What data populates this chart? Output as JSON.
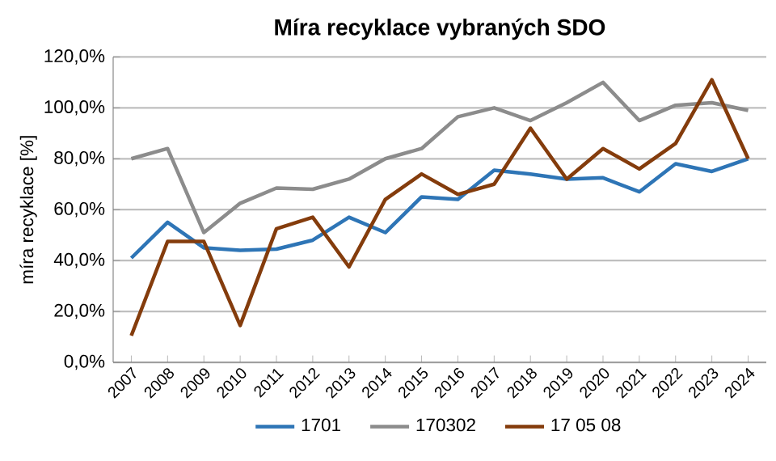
{
  "chart_data": {
    "type": "line",
    "title": "Míra recyklace vybraných SDO",
    "ylabel": "míra recyklace [%]",
    "categories": [
      "2007",
      "2008",
      "2009",
      "2010",
      "2011",
      "2012",
      "2013",
      "2014",
      "2015",
      "2016",
      "2017",
      "2018",
      "2019",
      "2020",
      "2021",
      "2022",
      "2023",
      "2024"
    ],
    "series": [
      {
        "name": "1701",
        "color": "#2e75b6",
        "values": [
          41,
          55,
          45,
          44,
          44.5,
          48,
          57,
          51,
          65,
          64,
          75.5,
          74,
          72,
          72.5,
          67,
          78,
          75,
          80
        ]
      },
      {
        "name": "170302",
        "color": "#8c8c8c",
        "values": [
          80,
          84,
          51,
          62.5,
          68.5,
          68,
          72,
          80,
          84,
          96.5,
          100,
          95,
          102,
          110,
          95,
          101,
          102,
          99
        ]
      },
      {
        "name": "17 05 08",
        "color": "#843c0c",
        "values": [
          10.5,
          47.5,
          47.5,
          14.5,
          52.5,
          57,
          37.5,
          64,
          74,
          66,
          70,
          92,
          72,
          84,
          76,
          86,
          111,
          80
        ]
      }
    ],
    "ylim": [
      0,
      120
    ],
    "yticks": [
      {
        "value": 0,
        "label": "0,0%"
      },
      {
        "value": 20,
        "label": "20,0%"
      },
      {
        "value": 40,
        "label": "40,0%"
      },
      {
        "value": 60,
        "label": "60,0%"
      },
      {
        "value": 80,
        "label": "80,0%"
      },
      {
        "value": 100,
        "label": "100,0%"
      },
      {
        "value": 120,
        "label": "120,0%"
      }
    ],
    "grid": "y",
    "legend": "bottom",
    "marker": "none",
    "line_style": "solid"
  }
}
